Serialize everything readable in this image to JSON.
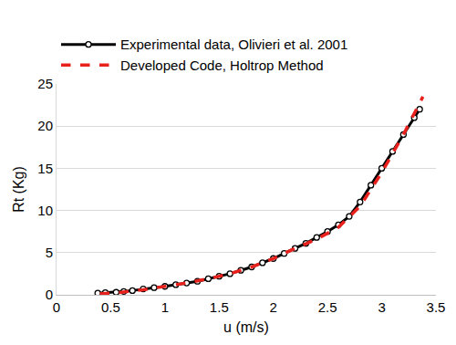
{
  "chart_data": {
    "type": "line",
    "x_label": "u (m/s)",
    "y_label": "Rt (Kg)",
    "xlim": [
      0,
      3.5
    ],
    "ylim": [
      0,
      25
    ],
    "xticks": [
      0,
      0.5,
      1,
      1.5,
      2,
      2.5,
      3,
      3.5
    ],
    "yticks": [
      0,
      5,
      10,
      15,
      20,
      25
    ],
    "grid": true,
    "legend": "top",
    "series": [
      {
        "name": "Experimental data, Olivieri et al. 2001",
        "color": "#000000",
        "marker": "circle",
        "line_style": "solid",
        "x": [
          0.38,
          0.45,
          0.55,
          0.62,
          0.7,
          0.8,
          0.9,
          1.0,
          1.1,
          1.2,
          1.3,
          1.4,
          1.5,
          1.6,
          1.7,
          1.8,
          1.9,
          2.0,
          2.1,
          2.2,
          2.3,
          2.4,
          2.5,
          2.6,
          2.7,
          2.8,
          2.9,
          3.0,
          3.1,
          3.2,
          3.3,
          3.35
        ],
        "values": [
          0.2,
          0.25,
          0.3,
          0.4,
          0.5,
          0.7,
          0.85,
          1.0,
          1.2,
          1.4,
          1.6,
          1.9,
          2.2,
          2.5,
          2.9,
          3.3,
          3.8,
          4.3,
          4.9,
          5.5,
          6.1,
          6.8,
          7.5,
          8.3,
          9.3,
          11,
          13,
          15,
          17,
          19,
          21,
          22
        ]
      },
      {
        "name": "Developed Code, Holtrop Method",
        "color": "#e8211d",
        "marker": "none",
        "line_style": "dash",
        "x": [
          0.4,
          0.6,
          0.8,
          1.0,
          1.2,
          1.4,
          1.6,
          1.8,
          2.0,
          2.2,
          2.4,
          2.6,
          2.8,
          3.0,
          3.2,
          3.38
        ],
        "values": [
          0.1,
          0.3,
          0.6,
          1.0,
          1.4,
          1.9,
          2.5,
          3.3,
          4.3,
          5.5,
          6.6,
          8.0,
          10.5,
          14.5,
          19,
          23.5
        ]
      }
    ]
  }
}
